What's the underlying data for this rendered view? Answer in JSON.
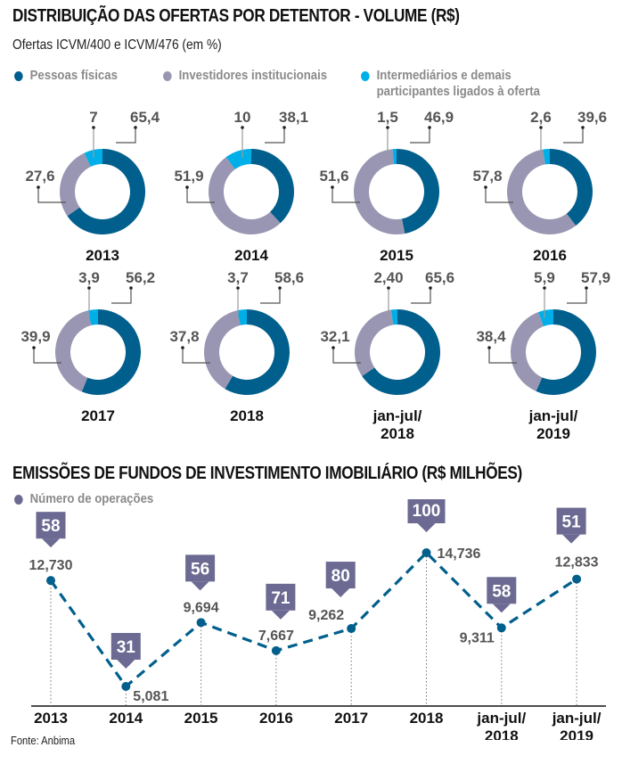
{
  "header": {
    "title": "DISTRIBUIÇÃO DAS OFERTAS POR DETENTOR - VOLUME (R$)",
    "subtitle": "Ofertas ICVM/400 e ICVM/476 (em %)"
  },
  "legend": [
    {
      "label": "Pessoas físicas",
      "color": "#005f8c"
    },
    {
      "label": "Investidores institucionais",
      "color": "#9896b2"
    },
    {
      "label_line1": "Intermediários e demais",
      "label_line2": "participantes ligados à oferta",
      "color": "#00aee8"
    }
  ],
  "section2": {
    "title": "EMISSÕES DE FUNDOS DE INVESTIMENTO IMOBILIÁRIO (R$ MILHÕES)",
    "legend_label": "Número de operações",
    "legend_color": "#6c6a92"
  },
  "source": "Fonte: Anbima",
  "chart_data": [
    {
      "type": "pie",
      "variant": "donut",
      "title": "Distribuição das ofertas por detentor - volume (R$)",
      "subtitle": "Ofertas ICVM/400 e ICVM/476 (em %)",
      "series_names": [
        "Pessoas físicas",
        "Investidores institucionais",
        "Intermediários e demais participantes ligados à oferta"
      ],
      "colors": [
        "#005f8c",
        "#9896b2",
        "#00aee8"
      ],
      "panels": [
        {
          "label": [
            "2013"
          ],
          "pessoas_fisicas": 65.4,
          "institucionais": 27.6,
          "intermediarios": 7,
          "labels": [
            "65,4",
            "27,6",
            "7"
          ]
        },
        {
          "label": [
            "2014"
          ],
          "pessoas_fisicas": 38.1,
          "institucionais": 51.9,
          "intermediarios": 10,
          "labels": [
            "38,1",
            "51,9",
            "10"
          ]
        },
        {
          "label": [
            "2015"
          ],
          "pessoas_fisicas": 46.9,
          "institucionais": 51.6,
          "intermediarios": 1.5,
          "labels": [
            "46,9",
            "51,6",
            "1,5"
          ]
        },
        {
          "label": [
            "2016"
          ],
          "pessoas_fisicas": 39.6,
          "institucionais": 57.8,
          "intermediarios": 2.6,
          "labels": [
            "39,6",
            "57,8",
            "2,6"
          ]
        },
        {
          "label": [
            "2017"
          ],
          "pessoas_fisicas": 56.2,
          "institucionais": 39.9,
          "intermediarios": 3.9,
          "labels": [
            "56,2",
            "39,9",
            "3,9"
          ]
        },
        {
          "label": [
            "2018"
          ],
          "pessoas_fisicas": 58.6,
          "institucionais": 37.8,
          "intermediarios": 3.7,
          "labels": [
            "58,6",
            "37,8",
            "3,7"
          ]
        },
        {
          "label": [
            "jan-jul/",
            "2018"
          ],
          "pessoas_fisicas": 65.6,
          "institucionais": 32.1,
          "intermediarios": 2.4,
          "labels": [
            "65,6",
            "32,1",
            "2,40"
          ]
        },
        {
          "label": [
            "jan-jul/",
            "2019"
          ],
          "pessoas_fisicas": 57.9,
          "institucionais": 38.4,
          "intermediarios": 5.9,
          "labels": [
            "57,9",
            "38,4",
            "5,9"
          ]
        }
      ]
    },
    {
      "type": "line",
      "title": "Emissões de fundos de investimento imobiliário (R$ milhões)",
      "categories": [
        [
          "2013"
        ],
        [
          "2014"
        ],
        [
          "2015"
        ],
        [
          "2016"
        ],
        [
          "2017"
        ],
        [
          "2018"
        ],
        [
          "jan-jul/",
          "2018"
        ],
        [
          "jan-jul/",
          "2019"
        ]
      ],
      "series": [
        {
          "name": "Emissões (R$ milhões)",
          "values": [
            12730,
            5081,
            9694,
            7667,
            9262,
            14736,
            9311,
            12833
          ],
          "value_labels": [
            "12,730",
            "5,081",
            "9,694",
            "7,667",
            "9,262",
            "14,736",
            "9,311",
            "12,833"
          ],
          "color": "#005f8c",
          "style": "dashed"
        },
        {
          "name": "Número de operações",
          "values": [
            58,
            31,
            56,
            71,
            80,
            100,
            58,
            51
          ],
          "color": "#6c6a92",
          "display": "callout-boxes"
        }
      ],
      "xlabel": "",
      "ylabel": "",
      "grid": false,
      "legend_position": "top-left"
    }
  ]
}
